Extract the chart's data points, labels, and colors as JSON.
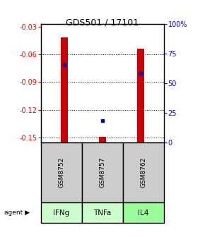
{
  "title": "GDS501 / 17101",
  "samples": [
    "GSM8752",
    "GSM8757",
    "GSM8762"
  ],
  "agents": [
    "IFNg",
    "TNFa",
    "IL4"
  ],
  "log_ratios": [
    -0.042,
    -0.149,
    -0.054
  ],
  "percentiles": [
    65,
    18,
    58
  ],
  "ylim_left": [
    -0.155,
    -0.027
  ],
  "ylim_right": [
    0,
    100
  ],
  "yticks_left": [
    -0.15,
    -0.12,
    -0.09,
    -0.06,
    -0.03
  ],
  "yticks_right": [
    0,
    25,
    50,
    75,
    100
  ],
  "yticks_right_labels": [
    "0",
    "25",
    "50",
    "75",
    "100%"
  ],
  "bar_color": "#cc0000",
  "dot_color": "#0000cc",
  "agent_colors": [
    "#ccffcc",
    "#ccffcc",
    "#99ff99"
  ],
  "sample_bg": "#cccccc",
  "bar_width": 0.18,
  "figsize": [
    2.9,
    3.36
  ],
  "dpi": 100
}
